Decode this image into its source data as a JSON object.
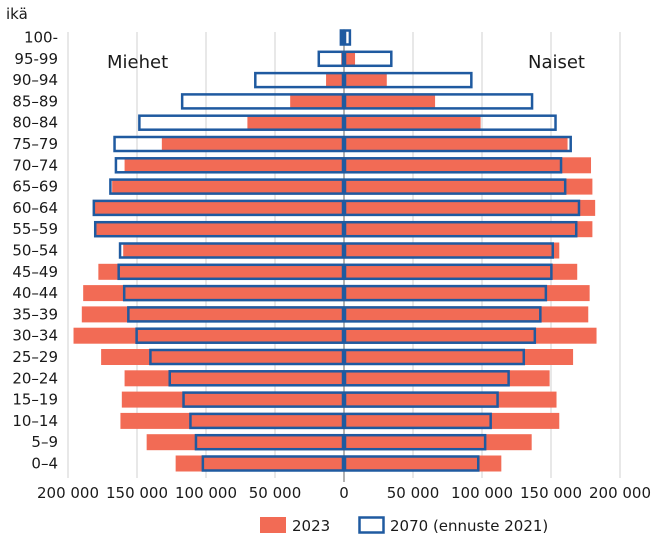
{
  "chart_data": {
    "type": "bar",
    "orientation": "horizontal",
    "layout": "population-pyramid",
    "ylabel": "ikä",
    "side_labels": {
      "left": "Miehet",
      "right": "Naiset"
    },
    "categories": [
      "0–4",
      "5–9",
      "10–14",
      "15–19",
      "20–24",
      "25–29",
      "30–34",
      "35–39",
      "40–44",
      "45–49",
      "50–54",
      "55–59",
      "60–64",
      "65–69",
      "70–74",
      "75–79",
      "80–84",
      "85–89",
      "90–94",
      "95-99",
      "100-"
    ],
    "x_ticks": [
      "200 000",
      "150 000",
      "100 000",
      "50 000",
      "0",
      "50 000",
      "100 000",
      "150 000",
      "200 000"
    ],
    "xlim": [
      -200000,
      200000
    ],
    "grid": true,
    "legend_position": "bottom",
    "series": [
      {
        "name": "2023",
        "color": "#f26b55",
        "style": "filled",
        "men": [
          122000,
          143000,
          162000,
          161000,
          159000,
          176000,
          196000,
          190000,
          189000,
          178000,
          160000,
          181000,
          182000,
          168000,
          159000,
          132000,
          70000,
          39000,
          13000,
          2000,
          500
        ],
        "women": [
          114000,
          136000,
          156000,
          154000,
          149000,
          166000,
          183000,
          177000,
          178000,
          169000,
          156000,
          180000,
          182000,
          180000,
          179000,
          162000,
          99000,
          66000,
          31000,
          8000,
          1500
        ]
      },
      {
        "name": "2070 (ennuste 2021)",
        "color": "#1f5aa0",
        "style": "outline",
        "men": [
          103000,
          108000,
          112000,
          117000,
          127000,
          141000,
          151000,
          157000,
          160000,
          164000,
          163000,
          181000,
          182000,
          170000,
          166000,
          167000,
          149000,
          118000,
          65000,
          19000,
          3000
        ],
        "women": [
          98000,
          103000,
          107000,
          112000,
          120000,
          131000,
          139000,
          143000,
          147000,
          151000,
          152000,
          169000,
          171000,
          161000,
          158000,
          165000,
          154000,
          137000,
          93000,
          35000,
          5000
        ]
      }
    ]
  }
}
